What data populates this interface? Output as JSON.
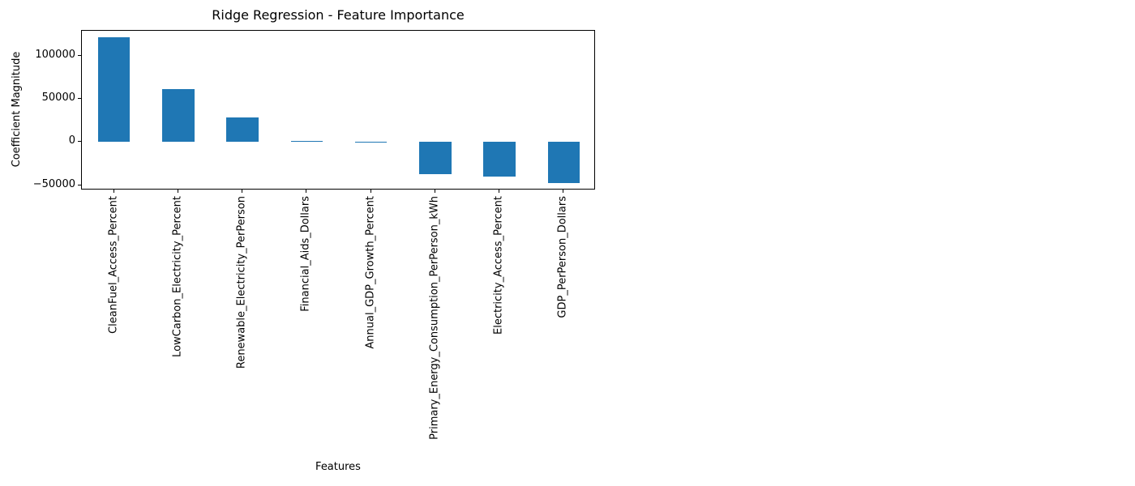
{
  "chart_data": {
    "type": "bar",
    "title": "Ridge Regression - Feature Importance",
    "xlabel": "Features",
    "ylabel": "Coefficient Magnitude",
    "categories": [
      "CleanFuel_Access_Percent",
      "LowCarbon_Electricity_Percent",
      "Renewable_Electricity_PerPerson",
      "Financial_Aids_Dollars",
      "Annual_GDP_Growth_Percent",
      "Primary_Energy_Consumption_PerPerson_kWh",
      "Electricity_Access_Percent",
      "GDP_PerPerson_Dollars"
    ],
    "values": [
      121000,
      61500,
      28000,
      1500,
      150,
      -37500,
      -39800,
      -47500
    ],
    "yticks": [
      {
        "value": -50000,
        "label": "−50000"
      },
      {
        "value": 0,
        "label": "0"
      },
      {
        "value": 50000,
        "label": "50000"
      },
      {
        "value": 100000,
        "label": "100000"
      }
    ],
    "ylim": [
      -56000,
      128800
    ],
    "grid": false,
    "legend_position": "none",
    "bar_rel_width": 0.5,
    "bar_color": "#1f77b4",
    "axis_color": "#000000",
    "text_color": "#000000",
    "background": "#ffffff"
  }
}
